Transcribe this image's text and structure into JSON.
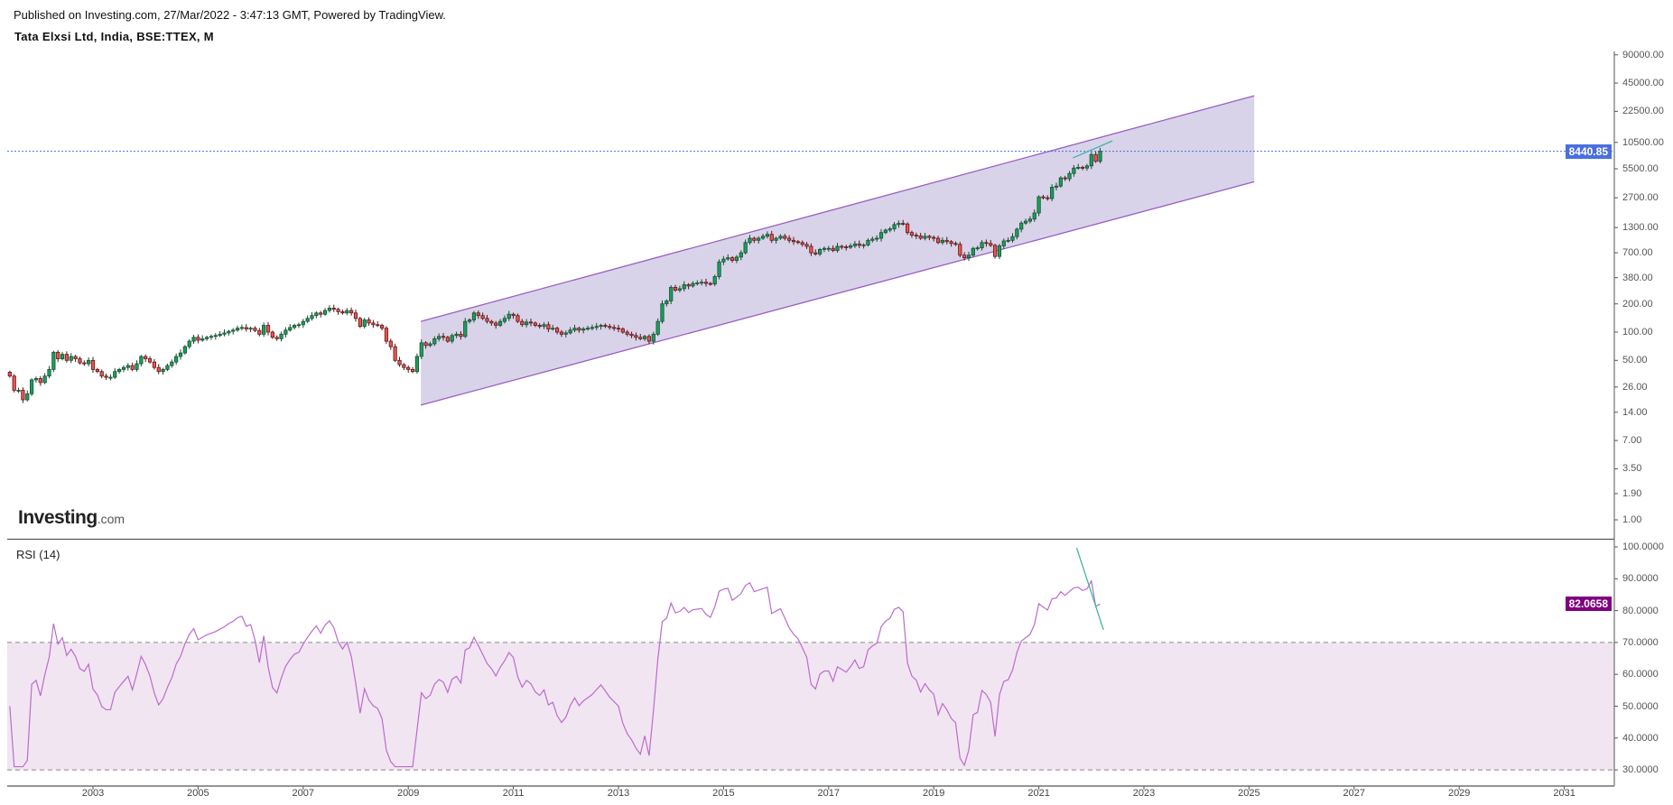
{
  "header": {
    "published": "Published on Investing.com, 27/Mar/2022 - 3:47:13 GMT, Powered by TradingView.",
    "title": "Tata Elxsi Ltd, India, BSE:TTEX, M"
  },
  "logo": {
    "main": "Investing",
    "suffix": ".com"
  },
  "colors": {
    "up": "#17a05d",
    "down": "#f0524f",
    "channel_fill": "#d9d3ea",
    "channel_line": "#9b5fc0",
    "rsi_line": "#bb6bcc",
    "rsi_band": "#f1e5f2",
    "price_badge": "#4a6fe0",
    "rsi_badge": "#800080",
    "trend": "#3fb5a0"
  },
  "chart_data": [
    {
      "type": "candlestick",
      "title": "Tata Elxsi Ltd, India, BSE:TTEX, M",
      "scale": "log",
      "start_month": "2001-06",
      "interval": "monthly",
      "closes": [
        34,
        24,
        24,
        19,
        22,
        31,
        32,
        29,
        34,
        40,
        61,
        52,
        58,
        50,
        55,
        52,
        47,
        46,
        50,
        40,
        38,
        34,
        33,
        33,
        38,
        40,
        42,
        44,
        40,
        46,
        55,
        52,
        48,
        42,
        38,
        40,
        44,
        48,
        55,
        60,
        70,
        80,
        88,
        82,
        85,
        88,
        90,
        92,
        95,
        98,
        102,
        105,
        110,
        112,
        108,
        110,
        104,
        95,
        118,
        100,
        88,
        85,
        95,
        105,
        112,
        118,
        120,
        130,
        140,
        150,
        160,
        155,
        170,
        180,
        175,
        165,
        160,
        170,
        160,
        140,
        115,
        135,
        125,
        120,
        118,
        110,
        80,
        70,
        50,
        45,
        42,
        40,
        38,
        55,
        77,
        72,
        75,
        85,
        90,
        88,
        80,
        92,
        95,
        90,
        130,
        135,
        160,
        150,
        140,
        130,
        125,
        118,
        130,
        140,
        155,
        150,
        130,
        120,
        128,
        125,
        118,
        115,
        120,
        108,
        110,
        100,
        95,
        98,
        105,
        110,
        105,
        108,
        110,
        112,
        115,
        118,
        115,
        112,
        110,
        108,
        100,
        95,
        92,
        88,
        85,
        90,
        80,
        95,
        130,
        200,
        215,
        300,
        280,
        290,
        320,
        310,
        330,
        335,
        340,
        330,
        325,
        390,
        560,
        600,
        620,
        580,
        630,
        700,
        900,
        1000,
        950,
        1000,
        1050,
        1100,
        950,
        1000,
        1050,
        1000,
        950,
        920,
        900,
        860,
        820,
        700,
        680,
        760,
        780,
        780,
        740,
        820,
        810,
        800,
        830,
        870,
        840,
        850,
        950,
        980,
        1000,
        1150,
        1220,
        1260,
        1400,
        1440,
        1420,
        1150,
        1080,
        1060,
        1000,
        1050,
        1020,
        1000,
        900,
        950,
        920,
        880,
        860,
        660,
        620,
        660,
        780,
        790,
        900,
        880,
        840,
        640,
        830,
        935,
        950,
        1040,
        1250,
        1450,
        1520,
        1600,
        1860,
        2760,
        2700,
        2650,
        3500,
        3600,
        4400,
        4300,
        4900,
        5600,
        5700,
        5600,
        5900,
        7800,
        6600,
        8440.85
      ],
      "last_price": "8440.85",
      "y_ticks": [
        "90000.00",
        "45000.00",
        "22500.00",
        "10500.00",
        "5500.00",
        "2700.00",
        "1300.00",
        "700.00",
        "380.00",
        "200.00",
        "100.00",
        "50.00",
        "26.00",
        "14.00",
        "7.00",
        "3.50",
        "1.90",
        "1.00"
      ],
      "x_ticks": [
        "2003",
        "2005",
        "2007",
        "2009",
        "2011",
        "2013",
        "2015",
        "2017",
        "2019",
        "2021",
        "2023",
        "2025",
        "2027",
        "2029",
        "2031"
      ],
      "channel": {
        "start": 2009.24,
        "end": 2025.1,
        "upper": [
          130,
          33000
        ],
        "lower": [
          16.7,
          4000
        ]
      },
      "trend_line": {
        "from": [
          2021.65,
          7180
        ],
        "to": [
          2022.4,
          10900
        ]
      }
    },
    {
      "type": "line",
      "title": "RSI (14)",
      "period": 14,
      "last_value": "82.0658",
      "ylim": [
        30,
        100
      ],
      "band": [
        30,
        70
      ],
      "y_ticks": [
        "100.0000",
        "90.0000",
        "80.0000",
        "70.0000",
        "60.0000",
        "50.0000",
        "40.0000",
        "30.0000"
      ],
      "trend_line": {
        "from": [
          2021.72,
          99.7
        ],
        "to": [
          2022.23,
          74
        ]
      }
    }
  ]
}
